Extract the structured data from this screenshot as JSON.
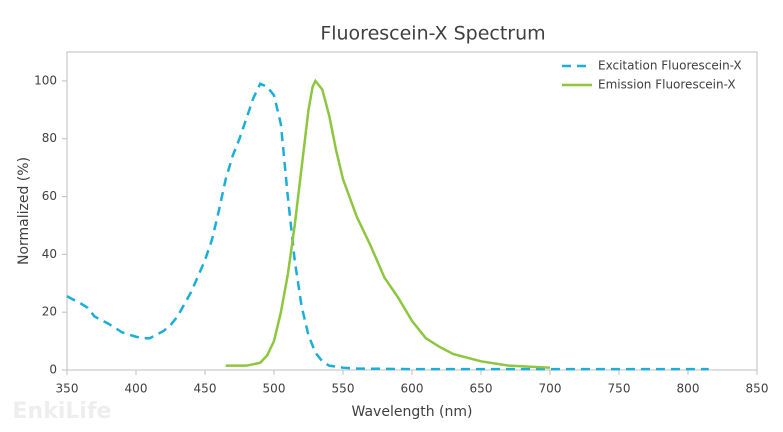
{
  "chart_data": {
    "type": "line",
    "title": "Fluorescein-X  Spectrum",
    "x_label": "Wavelength (nm)",
    "y_label": "Normalized (%)",
    "watermark": "EnkiLife",
    "xlim": [
      350,
      850
    ],
    "xticks": [
      350,
      400,
      450,
      500,
      550,
      600,
      650,
      700,
      750,
      800,
      850
    ],
    "ylim": [
      0,
      110
    ],
    "yticks": [
      0,
      20,
      40,
      60,
      80,
      100
    ],
    "legend": "top-right",
    "series": [
      {
        "name": "Excitation Fluorescein-X",
        "color": "#1aaed8",
        "dashed": true,
        "x": [
          350,
          360,
          365,
          370,
          380,
          390,
          400,
          405,
          410,
          420,
          425,
          430,
          440,
          450,
          455,
          460,
          465,
          470,
          475,
          480,
          485,
          490,
          495,
          500,
          505,
          510,
          515,
          520,
          525,
          530,
          535,
          540,
          550,
          560,
          600,
          700,
          800,
          815
        ],
        "values": [
          25.5,
          23,
          21.5,
          18.5,
          16,
          13,
          11.5,
          11,
          11,
          13.5,
          15.5,
          18.5,
          27,
          38,
          45,
          55,
          66,
          74,
          80,
          87,
          94,
          99,
          98,
          95,
          85,
          60,
          38,
          22,
          12,
          6,
          3,
          1.5,
          0.8,
          0.5,
          0.3,
          0.3,
          0.3,
          0.3
        ]
      },
      {
        "name": "Emission Fluorescein-X",
        "color": "#8dc63f",
        "dashed": false,
        "x": [
          465,
          480,
          490,
          495,
          500,
          505,
          510,
          515,
          520,
          525,
          528,
          530,
          535,
          540,
          545,
          550,
          560,
          570,
          580,
          590,
          600,
          610,
          620,
          630,
          650,
          670,
          700
        ],
        "values": [
          1.5,
          1.5,
          2.5,
          5,
          10,
          20,
          33,
          50,
          70,
          90,
          98,
          100,
          97,
          88,
          76,
          66,
          53,
          43,
          32,
          25,
          17,
          11,
          8,
          5.5,
          3,
          1.5,
          0.8
        ]
      }
    ]
  }
}
